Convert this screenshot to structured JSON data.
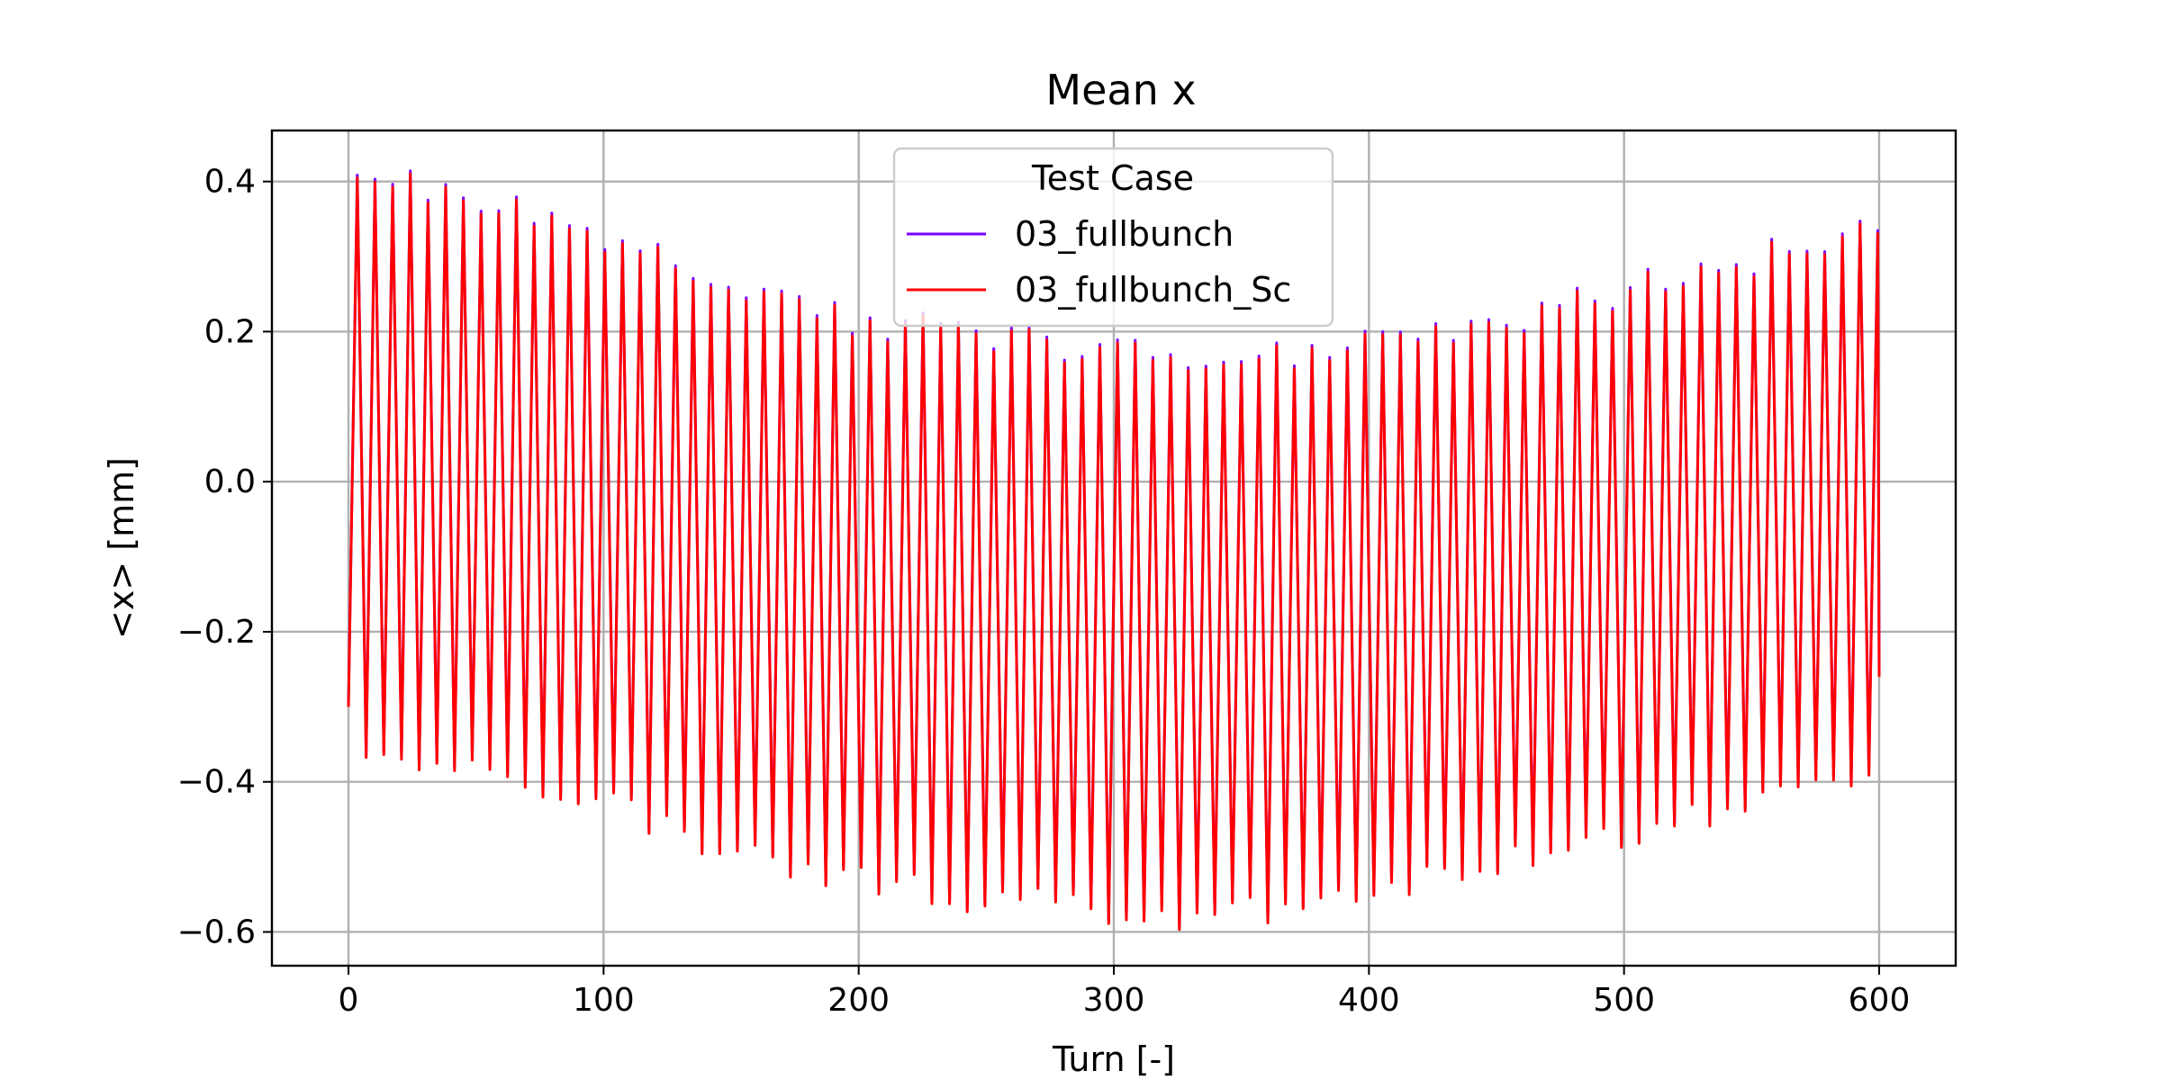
{
  "chart_data": {
    "type": "line",
    "title": "Mean x",
    "xlabel": "Turn [-]",
    "ylabel": "<x> [mm]",
    "xlim": [
      -30,
      630
    ],
    "ylim": [
      -0.645,
      0.468
    ],
    "xticks": [
      0,
      100,
      200,
      300,
      400,
      500,
      600
    ],
    "xtick_labels": [
      "0",
      "100",
      "200",
      "300",
      "400",
      "500",
      "600"
    ],
    "yticks": [
      -0.6,
      -0.4,
      -0.2,
      0.0,
      0.2,
      0.4
    ],
    "ytick_labels": [
      "−0.6",
      "−0.4",
      "−0.2",
      "0.0",
      "0.2",
      "0.4"
    ],
    "grid": true,
    "legend": {
      "title": "Test Case",
      "placement": "upper center"
    },
    "signal": {
      "turn_start": 0,
      "turn_end": 600,
      "period_turns": 6.93,
      "initial_value": -0.3,
      "upper_envelope": [
        [
          0,
          0.41
        ],
        [
          25,
          0.4
        ],
        [
          50,
          0.37
        ],
        [
          100,
          0.32
        ],
        [
          150,
          0.26
        ],
        [
          200,
          0.21
        ],
        [
          250,
          0.19
        ],
        [
          300,
          0.17
        ],
        [
          350,
          0.16
        ],
        [
          400,
          0.19
        ],
        [
          450,
          0.21
        ],
        [
          500,
          0.25
        ],
        [
          550,
          0.29
        ],
        [
          600,
          0.34
        ]
      ],
      "lower_envelope": [
        [
          0,
          -0.34
        ],
        [
          50,
          -0.38
        ],
        [
          100,
          -0.43
        ],
        [
          150,
          -0.49
        ],
        [
          200,
          -0.53
        ],
        [
          250,
          -0.555
        ],
        [
          300,
          -0.575
        ],
        [
          330,
          -0.585
        ],
        [
          350,
          -0.575
        ],
        [
          400,
          -0.55
        ],
        [
          450,
          -0.51
        ],
        [
          500,
          -0.47
        ],
        [
          550,
          -0.43
        ],
        [
          600,
          -0.4
        ]
      ],
      "final_value": -0.26
    },
    "series": [
      {
        "name": "03_fullbunch",
        "color": "#7a00ff"
      },
      {
        "name": "03_fullbunch_Sc",
        "color": "#ff0000"
      }
    ]
  }
}
